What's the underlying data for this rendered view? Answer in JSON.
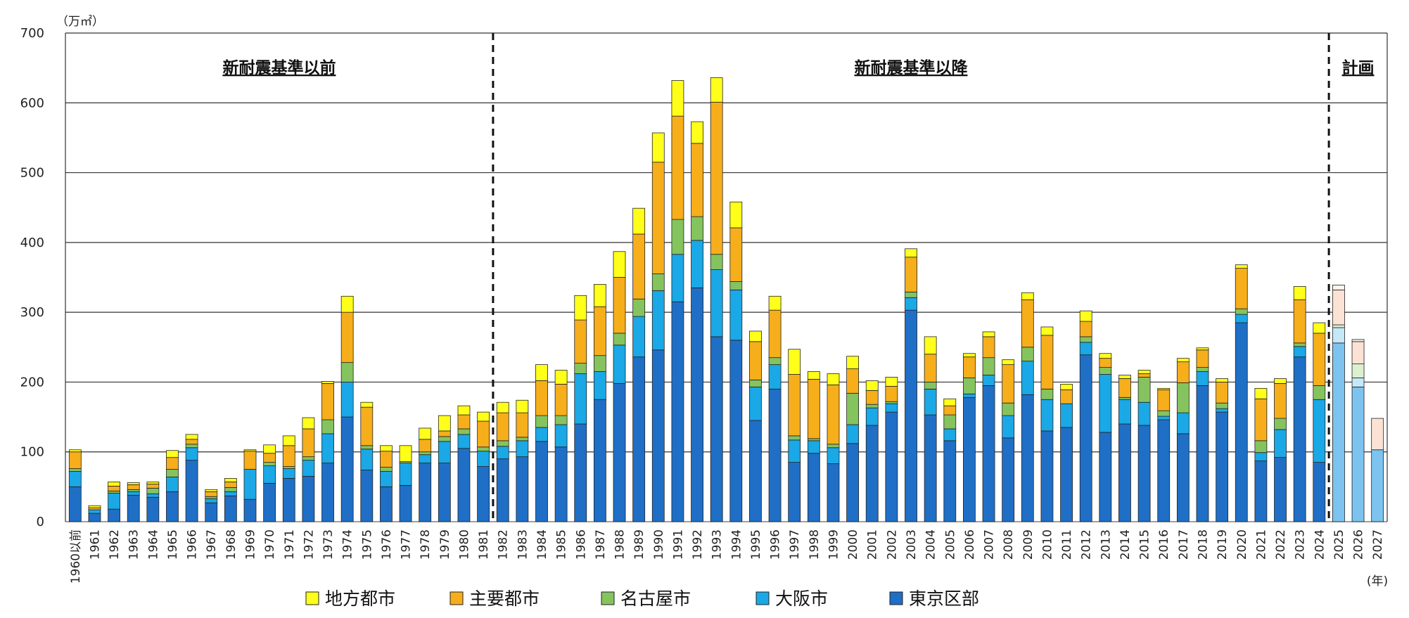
{
  "chart_data": {
    "type": "bar",
    "stacked": true,
    "y_unit": "（万㎡）",
    "x_unit": "(年)",
    "ylim": [
      0,
      700
    ],
    "yticks": [
      0,
      100,
      200,
      300,
      400,
      500,
      600,
      700
    ],
    "grid": true,
    "sections": [
      {
        "label": "新耐震基準以前"
      },
      {
        "label": "新耐震基準以降"
      },
      {
        "label": "計画"
      }
    ],
    "categories": [
      "1960以前",
      "1961",
      "1962",
      "1963",
      "1964",
      "1965",
      "1966",
      "1967",
      "1968",
      "1969",
      "1970",
      "1971",
      "1972",
      "1973",
      "1974",
      "1975",
      "1976",
      "1977",
      "1978",
      "1979",
      "1980",
      "1981",
      "1982",
      "1983",
      "1984",
      "1985",
      "1986",
      "1987",
      "1988",
      "1989",
      "1990",
      "1991",
      "1992",
      "1993",
      "1994",
      "1995",
      "1996",
      "1997",
      "1998",
      "1999",
      "2000",
      "2001",
      "2002",
      "2003",
      "2004",
      "2005",
      "2006",
      "2007",
      "2008",
      "2009",
      "2010",
      "2011",
      "2012",
      "2013",
      "2014",
      "2015",
      "2016",
      "2017",
      "2018",
      "2019",
      "2020",
      "2021",
      "2022",
      "2023",
      "2024",
      "2025",
      "2026",
      "2027"
    ],
    "series": [
      {
        "name": "東京区部",
        "color": "#1f6fc6",
        "plan_color": "#7cc3ef",
        "values": [
          50,
          12,
          18,
          38,
          35,
          43,
          88,
          27,
          37,
          32,
          55,
          62,
          65,
          84,
          150,
          74,
          50,
          52,
          84,
          84,
          105,
          79,
          90,
          93,
          115,
          107,
          140,
          175,
          198,
          236,
          246,
          315,
          335,
          265,
          260,
          145,
          190,
          85,
          98,
          83,
          112,
          138,
          157,
          303,
          153,
          116,
          178,
          195,
          120,
          182,
          130,
          135,
          239,
          128,
          140,
          138,
          146,
          126,
          195,
          157,
          285,
          87,
          92,
          236,
          85,
          256,
          193,
          103
        ]
      },
      {
        "name": "大阪市",
        "color": "#1aa8e6",
        "plan_color": "#c4e8f7",
        "values": [
          22,
          5,
          23,
          5,
          5,
          21,
          18,
          6,
          6,
          43,
          25,
          14,
          23,
          42,
          50,
          30,
          22,
          32,
          12,
          31,
          20,
          22,
          18,
          23,
          20,
          32,
          72,
          40,
          55,
          58,
          85,
          68,
          68,
          96,
          72,
          48,
          35,
          32,
          18,
          23,
          27,
          25,
          12,
          18,
          37,
          17,
          5,
          15,
          32,
          48,
          45,
          34,
          18,
          83,
          35,
          33,
          5,
          30,
          20,
          5,
          12,
          12,
          40,
          15,
          90,
          22,
          13,
          0
        ]
      },
      {
        "name": "名古屋市",
        "color": "#85c35e",
        "plan_color": "#dcf0d0",
        "values": [
          4,
          0,
          3,
          3,
          8,
          11,
          5,
          3,
          6,
          0,
          5,
          3,
          5,
          20,
          28,
          5,
          6,
          2,
          4,
          7,
          8,
          6,
          8,
          5,
          17,
          13,
          15,
          23,
          17,
          25,
          24,
          50,
          34,
          22,
          12,
          10,
          10,
          6,
          3,
          5,
          45,
          5,
          3,
          8,
          10,
          20,
          23,
          25,
          18,
          20,
          15,
          0,
          8,
          10,
          3,
          36,
          8,
          43,
          6,
          8,
          8,
          17,
          16,
          5,
          20,
          4,
          20,
          0
        ]
      },
      {
        "name": "主要都市",
        "color": "#f6ae1b",
        "plan_color": "#fce2d4",
        "values": [
          24,
          3,
          7,
          7,
          6,
          17,
          7,
          7,
          8,
          26,
          13,
          30,
          40,
          52,
          72,
          55,
          23,
          0,
          18,
          8,
          20,
          37,
          40,
          35,
          50,
          45,
          62,
          70,
          80,
          93,
          160,
          148,
          105,
          218,
          77,
          55,
          68,
          88,
          85,
          85,
          35,
          20,
          22,
          50,
          40,
          13,
          30,
          30,
          55,
          68,
          77,
          20,
          22,
          13,
          27,
          5,
          30,
          30,
          25,
          30,
          58,
          60,
          50,
          62,
          75,
          50,
          32,
          45
        ]
      },
      {
        "name": "地方都市",
        "color": "#ffff1a",
        "plan_color": "#fdf4ec",
        "values": [
          3,
          3,
          6,
          3,
          3,
          10,
          7,
          3,
          5,
          2,
          12,
          14,
          16,
          3,
          23,
          7,
          8,
          23,
          16,
          22,
          13,
          13,
          15,
          18,
          23,
          20,
          35,
          32,
          37,
          37,
          42,
          51,
          31,
          35,
          37,
          15,
          20,
          36,
          11,
          16,
          18,
          14,
          13,
          12,
          25,
          10,
          5,
          7,
          7,
          10,
          12,
          8,
          15,
          7,
          5,
          5,
          2,
          5,
          3,
          5,
          5,
          15,
          7,
          19,
          15,
          7,
          3,
          0
        ]
      }
    ]
  },
  "legend_order": [
    "地方都市",
    "主要都市",
    "名古屋市",
    "大阪市",
    "東京区部"
  ]
}
